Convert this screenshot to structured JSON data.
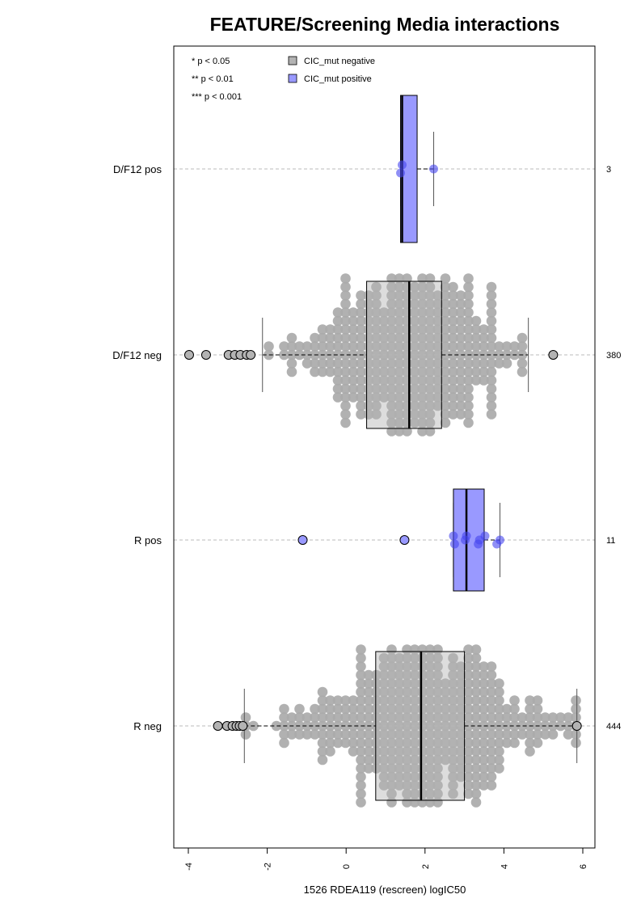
{
  "chart_data": {
    "type": "box",
    "title": "FEATURE/Screening Media interactions",
    "xlabel": "1526 RDEA119 (rescreen) logIC50",
    "xlim": [
      -4.35,
      6.3
    ],
    "x_ticks": [
      "-4",
      "-2",
      "0",
      "2",
      "4",
      "6"
    ],
    "x_tick_values": [
      -4,
      -2,
      0,
      2,
      4,
      6
    ],
    "significance_legend": [
      "* p < 0.05",
      "** p < 0.01",
      "*** p < 0.001"
    ],
    "legend": [
      {
        "label": "CIC_mut negative",
        "color": "#b3b3b3"
      },
      {
        "label": "CIC_mut positive",
        "color": "#9999ff"
      }
    ],
    "groups": [
      {
        "label": "D/F12 pos",
        "n": "3",
        "status": "positive",
        "whisker_low": 1.38,
        "q1": 1.38,
        "median": 1.42,
        "q3": 1.8,
        "whisker_high": 2.22,
        "outliers": [],
        "points": [
          1.42,
          1.38,
          2.22
        ]
      },
      {
        "label": "D/F12 neg",
        "n": "380",
        "status": "negative",
        "whisker_low": -2.12,
        "q1": 0.52,
        "median": 1.6,
        "q3": 2.42,
        "whisker_high": 4.62,
        "outliers": [
          -3.98,
          -3.55,
          -2.98,
          -2.82,
          -2.68,
          -2.52,
          -2.42,
          5.25
        ],
        "points": []
      },
      {
        "label": "R pos",
        "n": "11",
        "status": "positive",
        "whisker_low": 2.72,
        "q1": 2.72,
        "median": 3.05,
        "q3": 3.5,
        "whisker_high": 3.9,
        "outliers": [
          -1.1,
          1.48
        ],
        "points": [
          2.72,
          2.75,
          3.02,
          3.05,
          3.35,
          3.38,
          3.52,
          3.82,
          3.9
        ]
      },
      {
        "label": "R neg",
        "n": "444",
        "status": "negative",
        "whisker_low": -2.58,
        "q1": 0.75,
        "median": 1.9,
        "q3": 3.0,
        "whisker_high": 5.85,
        "outliers": [
          -3.25,
          -3.02,
          -2.88,
          -2.78,
          -2.7,
          -2.62,
          5.85
        ],
        "points": []
      }
    ],
    "grid": false
  }
}
